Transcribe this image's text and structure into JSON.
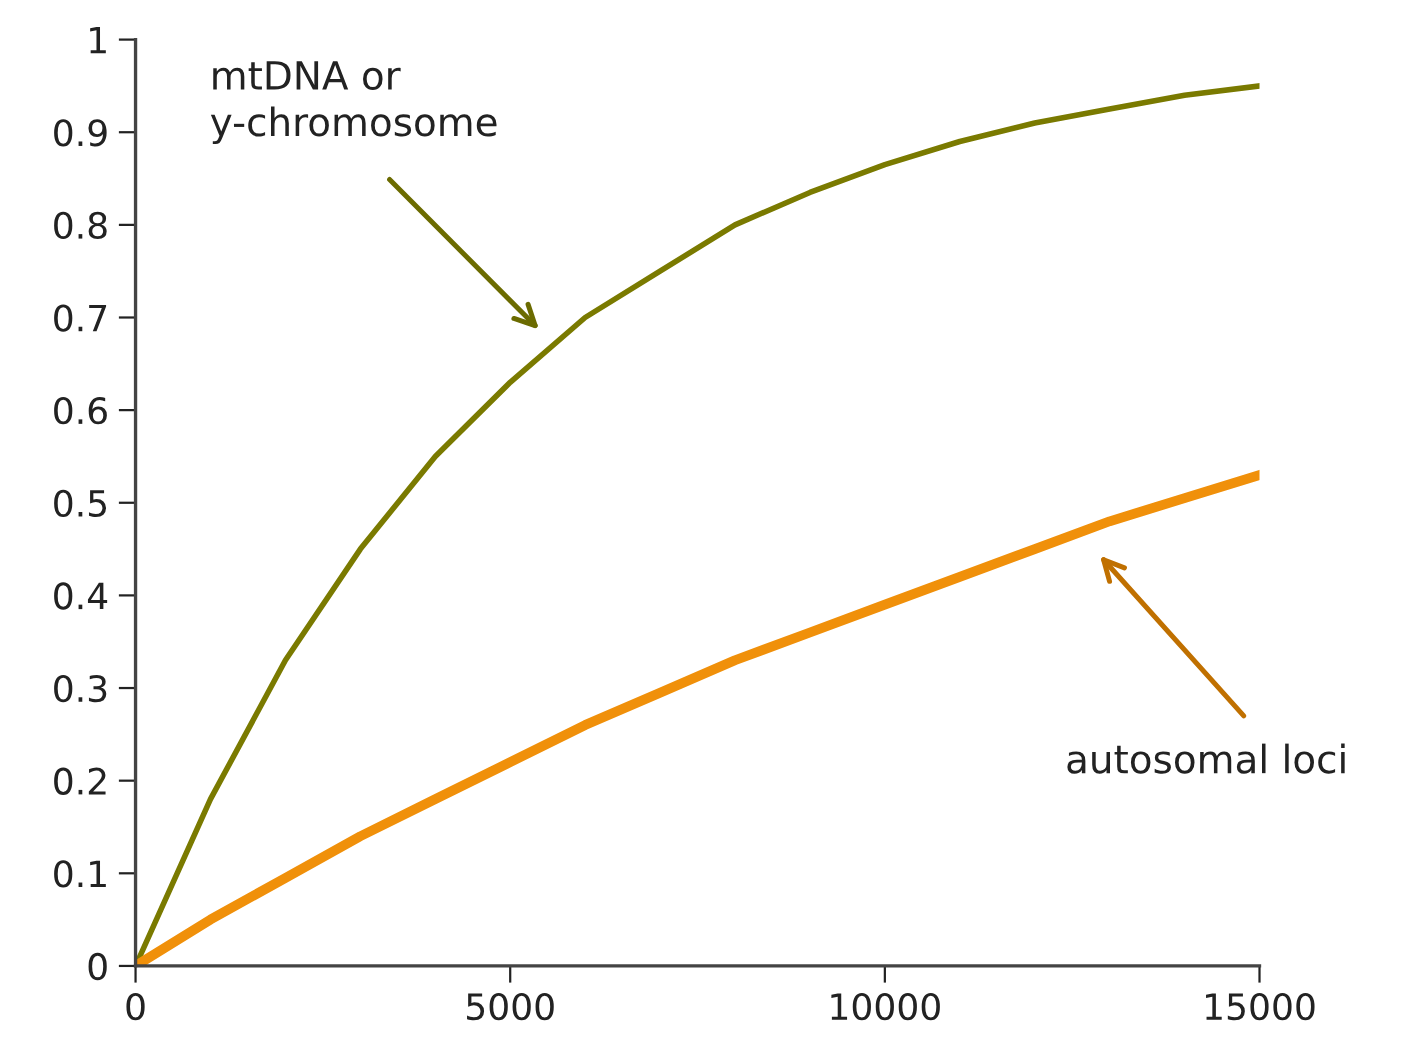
{
  "chart_data": {
    "type": "line",
    "xlim": [
      0,
      15000
    ],
    "xticks": [
      0,
      5000,
      10000,
      15000
    ],
    "ylim": [
      0,
      1
    ],
    "yticks": [
      0,
      0.1,
      0.2,
      0.3,
      0.4,
      0.5,
      0.6,
      0.7,
      0.8,
      0.9,
      1
    ],
    "grid": false,
    "legend": false,
    "marker": "none",
    "line_style": "solid",
    "series": [
      {
        "color": "#7a7a00",
        "x": [
          0,
          1000,
          2000,
          3000,
          4000,
          5000,
          6000,
          7000,
          8000,
          9000,
          10000,
          11000,
          12000,
          13000,
          14000,
          15000
        ],
        "values": [
          0,
          0.18,
          0.33,
          0.45,
          0.55,
          0.63,
          0.7,
          0.75,
          0.8,
          0.835,
          0.865,
          0.89,
          0.91,
          0.925,
          0.94,
          0.95
        ]
      },
      {
        "color": "#f0900a",
        "x": [
          0,
          1000,
          2000,
          3000,
          4000,
          5000,
          6000,
          7000,
          8000,
          9000,
          10000,
          11000,
          12000,
          13000,
          14000,
          15000
        ],
        "values": [
          0,
          0.05,
          0.095,
          0.14,
          0.18,
          0.22,
          0.26,
          0.295,
          0.33,
          0.36,
          0.39,
          0.42,
          0.45,
          0.48,
          0.505,
          0.53
        ]
      }
    ],
    "annotations": [
      "mtDNA or\ny-chromosome",
      "autosomal loci"
    ]
  }
}
